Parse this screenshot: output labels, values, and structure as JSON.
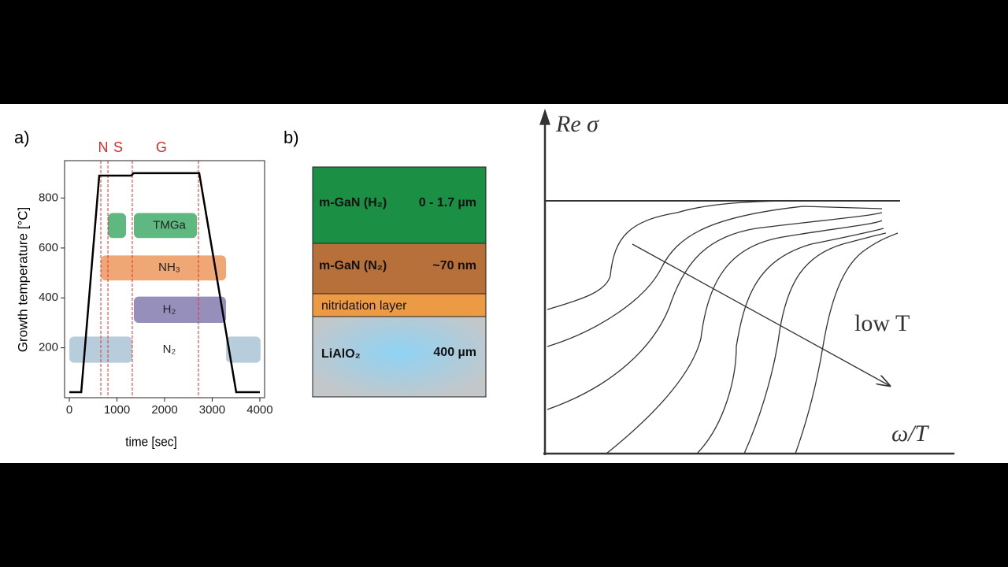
{
  "chart_data": [
    {
      "type": "line",
      "panel_label": "a)",
      "x_label": "time [sec]",
      "y_label": "Growth temperature [°C]",
      "x": [
        0,
        250,
        628,
        1300,
        1350,
        2727,
        3504,
        4000
      ],
      "values": [
        22,
        22,
        890,
        890,
        900,
        900,
        22,
        22
      ],
      "color": "#000000",
      "xlim": [
        -100,
        4100
      ],
      "ylim": [
        0,
        950
      ],
      "xticks": [
        0,
        1000,
        2000,
        3000,
        4000
      ],
      "yticks": [
        200,
        400,
        600,
        800
      ],
      "phase_lines": [
        661,
        810,
        1322,
        2711
      ],
      "phase_labels": [
        {
          "text": "N",
          "x": 710
        },
        {
          "text": "S",
          "x": 1025
        },
        {
          "text": "G",
          "x": 1934
        }
      ],
      "bands": [
        {
          "name": "TMGa",
          "color": "#1a9a4a",
          "segments": [
            [
              810,
              1190
            ],
            [
              1355,
              2680
            ]
          ],
          "y": [
            640,
            740
          ]
        },
        {
          "name": "NH₃",
          "color": "#e8823a",
          "segments": [
            [
              661,
              3290
            ]
          ],
          "y": [
            470,
            570
          ]
        },
        {
          "name": "H₂",
          "color": "#6a5fa0",
          "segments": [
            [
              1355,
              3290
            ]
          ],
          "y": [
            300,
            405
          ]
        },
        {
          "name": "N₂",
          "color": "#9ab8cc",
          "segments": [
            [
              0,
              1322
            ],
            [
              3290,
              4016
            ]
          ],
          "y": [
            140,
            245
          ]
        }
      ]
    }
  ],
  "layers": {
    "panel_label": "b)",
    "items": [
      {
        "name": "m-GaN (H₂)",
        "detail": "0 - 1.7 µm"
      },
      {
        "name": "m-GaN (N₂)",
        "detail": "~70 nm"
      },
      {
        "name": "nitridation layer"
      },
      {
        "name": "LiAlO₂",
        "detail": "400 µm"
      }
    ]
  },
  "sketch": {
    "y_label": "Re σ",
    "x_label": "ω/T",
    "arrow_label": "low T"
  }
}
